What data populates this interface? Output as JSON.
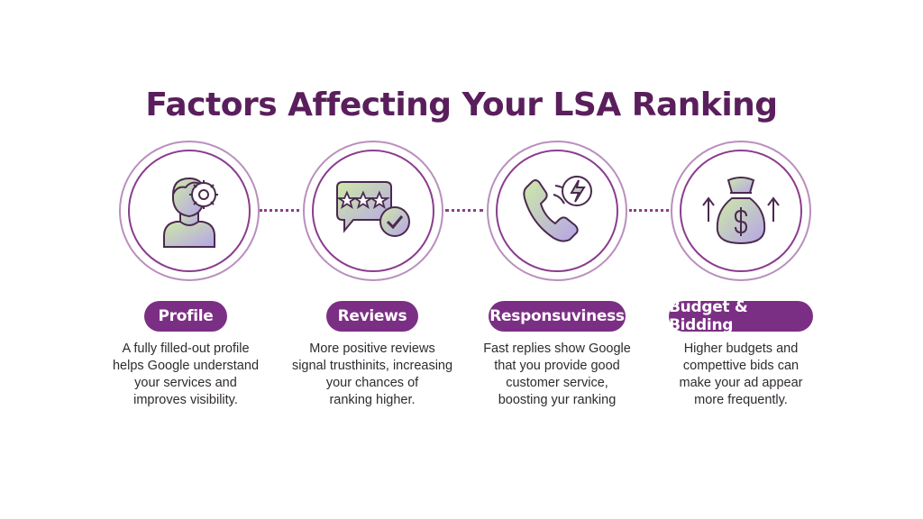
{
  "title": "Factors Affecting Your LSA Ranking",
  "colors": {
    "primary": "#7b2f84",
    "title": "#5a1e5c",
    "icon_fill_start": "#c9e8a8",
    "icon_fill_end": "#b9a6e6"
  },
  "factors": [
    {
      "icon": "profile-gear-icon",
      "label": "Profile",
      "lines": [
        "A fully filled-out profile",
        "helps Google understand",
        "your services and",
        "improves visibility."
      ]
    },
    {
      "icon": "review-stars-icon",
      "label": "Reviews",
      "lines": [
        "More positive reviews",
        "signal trusthinits, increasing",
        "your chances of",
        "ranking higher."
      ]
    },
    {
      "icon": "phone-lightning-icon",
      "label": "Responsuviness",
      "lines": [
        "Fast replies show Google",
        "that you provide good",
        "customer service,",
        "boosting yur ranking"
      ]
    },
    {
      "icon": "money-bag-icon",
      "label": "Budget & Bidding",
      "lines": [
        "Higher budgets and",
        "compettive bids can",
        "make your ad appear",
        "more frequently."
      ]
    }
  ]
}
